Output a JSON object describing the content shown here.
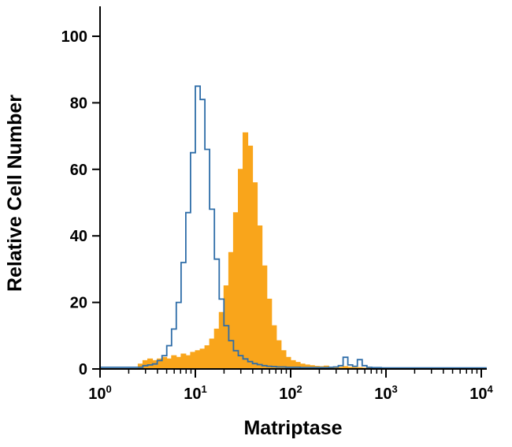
{
  "chart_data": {
    "type": "histogram",
    "title": "",
    "xlabel": "Matriptase",
    "ylabel": "Relative Cell Number",
    "x_scale": "log10",
    "xlim_log10": [
      0,
      4
    ],
    "ylim": [
      0,
      100
    ],
    "x_ticks_exponents": [
      0,
      1,
      2,
      3,
      4
    ],
    "y_ticks": [
      0,
      20,
      40,
      60,
      80,
      100
    ],
    "grid": false,
    "legend": "none",
    "background_color": "#ffffff",
    "axis_color": "#000000",
    "series": [
      {
        "name": "filled-histogram",
        "style": "filled",
        "color": "#F9A51B",
        "log_start": 0.4,
        "log_step": 0.05,
        "counts": [
          1.5,
          2.5,
          3,
          2.5,
          3,
          3.5,
          3,
          4,
          3.5,
          4.5,
          4,
          5,
          5.5,
          6,
          7,
          9,
          12,
          17,
          25,
          35,
          47,
          60,
          71,
          67,
          56,
          43,
          31,
          21,
          13,
          8.5,
          5.5,
          3.5,
          2.5,
          2,
          1.5,
          1.2,
          1,
          0.8,
          0.7,
          0.9,
          0.6,
          0.5,
          0.5,
          0.7,
          0.5,
          0.4,
          0.4,
          0.3,
          0.3,
          0.3,
          0.3,
          0.3,
          0.2,
          0.2,
          0.2,
          0.2
        ]
      },
      {
        "name": "open-histogram",
        "style": "open",
        "color": "#2E6DA8",
        "log_start": 0.0,
        "log_step": 0.05,
        "counts": [
          0.5,
          0.5,
          0.5,
          0.5,
          0.5,
          0.5,
          0.5,
          0.5,
          0.5,
          1,
          1.2,
          1.5,
          2.5,
          4,
          7,
          12,
          20,
          32,
          47,
          65,
          85,
          81,
          66,
          48,
          33,
          21,
          13,
          8.5,
          5.5,
          4,
          3,
          2.2,
          1.6,
          1.3,
          1,
          0.8,
          0.7,
          0.6,
          0.6,
          0.5,
          0.5,
          0.5,
          0.4,
          0.4,
          0.4,
          0.4,
          0.4,
          0.4,
          0.5,
          0.6,
          1,
          3.5,
          1.2,
          0.8,
          2.8,
          1,
          0.5,
          0.4,
          0.4,
          0.3,
          0.3,
          0.3,
          0.3,
          0.3,
          0.3,
          0.3,
          0.3,
          0.3,
          0.3,
          0.3,
          0.3,
          0.3,
          0.3,
          0.3,
          0.3,
          0.3,
          0.3,
          0.3,
          0.3,
          0.3,
          0.3
        ]
      }
    ]
  }
}
